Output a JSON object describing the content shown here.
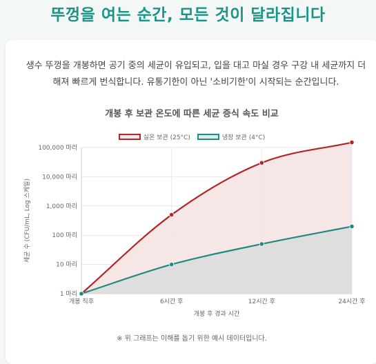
{
  "page": {
    "title": "뚜껑을 여는 순간, 모든 것이 달라집니다",
    "intro": "생수 뚜껑을 개봉하면 공기 중의 세균이 유입되고, 입을 대고 마실 경우 구강 내 세균까지 더해져 빠르게 번식합니다. 유통기한이 아닌 '소비기한'이 시작되는 순간입니다.",
    "note": "※ 위 그래프는 이해를 돕기 위한 예시 데이터입니다."
  },
  "colors": {
    "accent": "#1a9486",
    "room": "#b0262a",
    "room_fill": "#f6e3e3",
    "fridge": "#1f8a84",
    "fridge_fill": "#dfdede"
  },
  "chart_data": {
    "type": "area",
    "title": "개봉 후 보관 온도에 따른 세균 증식 속도 비교",
    "xlabel": "개봉 후 경과 시간",
    "ylabel": "세균 수 (CFU/mL, Log 스케일)",
    "categories": [
      "개봉 직후",
      "6시간 후",
      "12시간 후",
      "24시간 후"
    ],
    "y_scale": "log",
    "ylim": [
      1,
      100000
    ],
    "y_ticks": [
      {
        "value": 1,
        "label": "1 마리"
      },
      {
        "value": 10,
        "label": "10 마리"
      },
      {
        "value": 100,
        "label": "100 마리"
      },
      {
        "value": 1000,
        "label": "1,000 마리"
      },
      {
        "value": 10000,
        "label": "10,000 마리"
      },
      {
        "value": 100000,
        "label": "100,000 마리"
      }
    ],
    "series": [
      {
        "name": "실온 보관 (25°C)",
        "values": [
          1,
          500,
          30000,
          150000
        ]
      },
      {
        "name": "냉장 보관 (4°C)",
        "values": [
          1,
          10,
          50,
          200
        ]
      }
    ],
    "grid": true,
    "legend": "top"
  }
}
